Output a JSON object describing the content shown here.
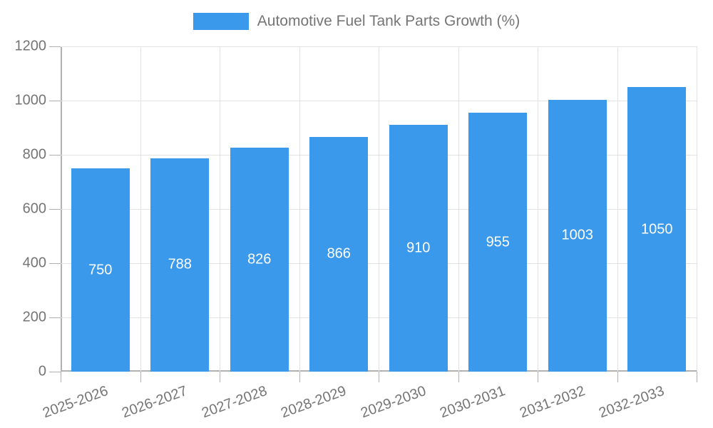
{
  "chart_data": {
    "type": "bar",
    "title": "",
    "legend_entries": [
      "Automotive Fuel Tank Parts Growth (%)"
    ],
    "series_name": "Automotive Fuel Tank Parts Growth (%)",
    "categories": [
      "2025-2026",
      "2026-2027",
      "2027-2028",
      "2028-2029",
      "2029-2030",
      "2030-2031",
      "2031-2032",
      "2032-2033"
    ],
    "values": [
      750,
      788,
      826,
      866,
      910,
      955,
      1003,
      1050
    ],
    "y_ticks": [
      0,
      200,
      400,
      600,
      800,
      1000,
      1200
    ],
    "ylim": [
      0,
      1200
    ],
    "xlabel": "",
    "ylabel": "",
    "grid": true,
    "legend_position": "top-center",
    "bar_color": "#3b99ec",
    "bar_label_color": "#ffffff",
    "axis_line_color": "#b1b1b1",
    "grid_color": "#e3e3e3",
    "tick_text_color": "#757575"
  }
}
